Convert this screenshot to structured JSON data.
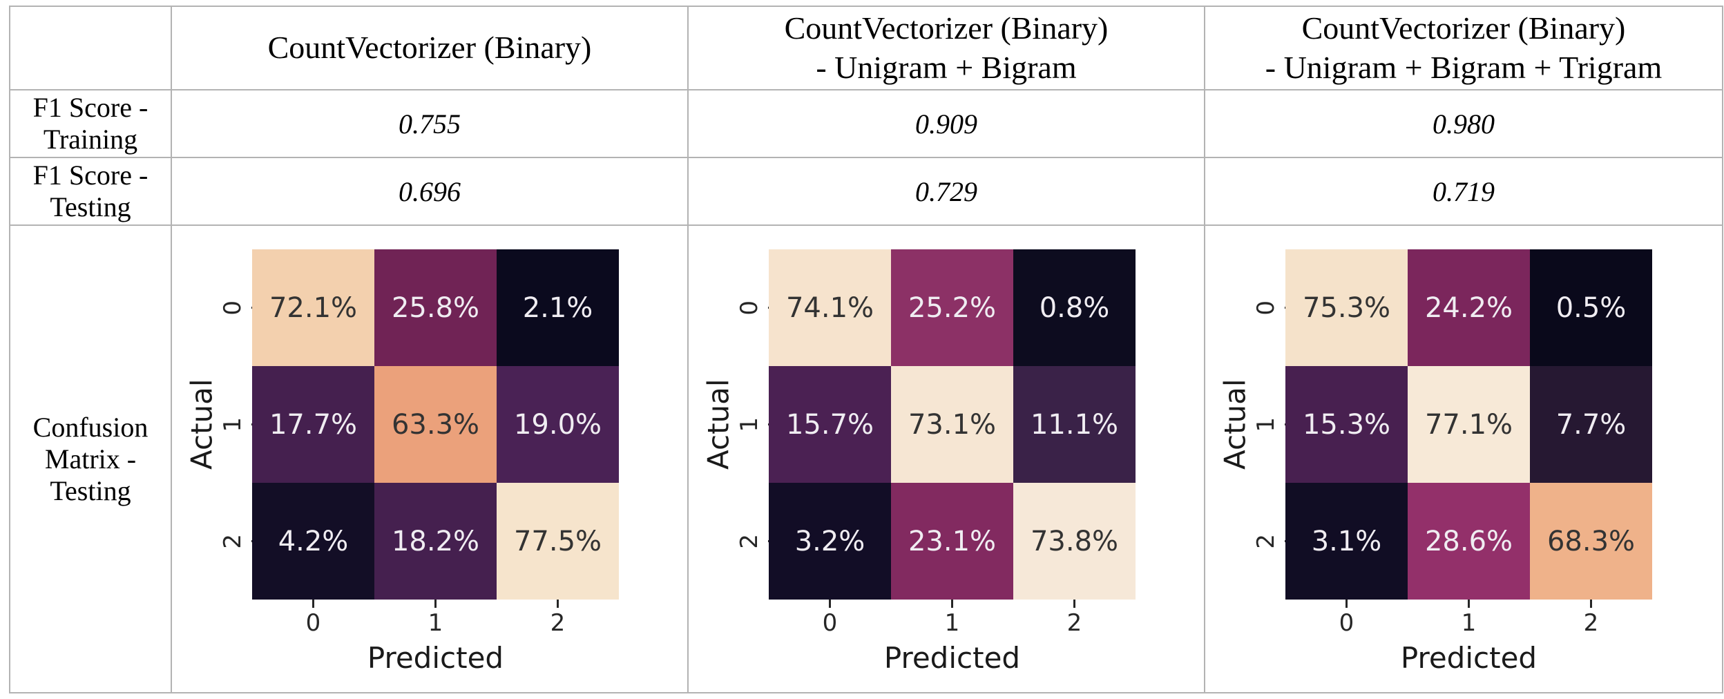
{
  "table": {
    "border_color": "#b3b3b3",
    "row_headers": {
      "f1_training": "F1 Score - Training",
      "f1_testing": "F1 Score - Testing",
      "confusion": "Confusion Matrix - Testing"
    },
    "columns": [
      {
        "title_line1": "CountVectorizer (Binary)",
        "title_line2": "",
        "f1_training": "0.755",
        "f1_testing": "0.696"
      },
      {
        "title_line1": "CountVectorizer (Binary)",
        "title_line2": "-  Unigram + Bigram",
        "f1_training": "0.909",
        "f1_testing": "0.729"
      },
      {
        "title_line1": "CountVectorizer (Binary)",
        "title_line2": "-  Unigram + Bigram + Trigram",
        "f1_training": "0.980",
        "f1_testing": "0.719"
      }
    ]
  },
  "chart_data": [
    {
      "type": "heatmap",
      "title": "Confusion Matrix - Testing: CountVectorizer (Binary)",
      "xlabel": "Predicted",
      "ylabel": "Actual",
      "x_ticks": [
        "0",
        "1",
        "2"
      ],
      "y_ticks": [
        "0",
        "1",
        "2"
      ],
      "values": [
        [
          72.1,
          25.8,
          2.1
        ],
        [
          17.7,
          63.3,
          19.0
        ],
        [
          4.2,
          18.2,
          77.5
        ]
      ],
      "colormap": "rocket-like, normalized per matrix",
      "cells": [
        [
          {
            "label": "72.1%",
            "bg": "#f3d0ae",
            "fg": "#333333"
          },
          {
            "label": "25.8%",
            "bg": "#702355",
            "fg": "#f0edf2"
          },
          {
            "label": "2.1%",
            "bg": "#0b0a1e",
            "fg": "#f0edf2"
          }
        ],
        [
          {
            "label": "17.7%",
            "bg": "#45204f",
            "fg": "#f0edf2"
          },
          {
            "label": "63.3%",
            "bg": "#eba17b",
            "fg": "#333333"
          },
          {
            "label": "19.0%",
            "bg": "#4a2255",
            "fg": "#f0edf2"
          }
        ],
        [
          {
            "label": "4.2%",
            "bg": "#130e26",
            "fg": "#f0edf2"
          },
          {
            "label": "18.2%",
            "bg": "#45204f",
            "fg": "#f0edf2"
          },
          {
            "label": "77.5%",
            "bg": "#f6e4cc",
            "fg": "#333333"
          }
        ]
      ]
    },
    {
      "type": "heatmap",
      "title": "Confusion Matrix - Testing: CountVectorizer (Binary) - Unigram + Bigram",
      "xlabel": "Predicted",
      "ylabel": "Actual",
      "x_ticks": [
        "0",
        "1",
        "2"
      ],
      "y_ticks": [
        "0",
        "1",
        "2"
      ],
      "values": [
        [
          74.1,
          25.2,
          0.8
        ],
        [
          15.7,
          73.1,
          11.1
        ],
        [
          3.2,
          23.1,
          73.8
        ]
      ],
      "colormap": "rocket-like, normalized per matrix",
      "cells": [
        [
          {
            "label": "74.1%",
            "bg": "#f6e3cd",
            "fg": "#333333"
          },
          {
            "label": "25.2%",
            "bg": "#8c3166",
            "fg": "#f0edf2"
          },
          {
            "label": "0.8%",
            "bg": "#0d0c1f",
            "fg": "#f0edf2"
          }
        ],
        [
          {
            "label": "15.7%",
            "bg": "#4b2153",
            "fg": "#f0edf2"
          },
          {
            "label": "73.1%",
            "bg": "#f6e6d3",
            "fg": "#333333"
          },
          {
            "label": "11.1%",
            "bg": "#3a2248",
            "fg": "#f0edf2"
          }
        ],
        [
          {
            "label": "3.2%",
            "bg": "#120d26",
            "fg": "#f0edf2"
          },
          {
            "label": "23.1%",
            "bg": "#822a60",
            "fg": "#f0edf2"
          },
          {
            "label": "73.8%",
            "bg": "#f6e8d8",
            "fg": "#333333"
          }
        ]
      ]
    },
    {
      "type": "heatmap",
      "title": "Confusion Matrix - Testing: CountVectorizer (Binary) - Unigram + Bigram + Trigram",
      "xlabel": "Predicted",
      "ylabel": "Actual",
      "x_ticks": [
        "0",
        "1",
        "2"
      ],
      "y_ticks": [
        "0",
        "1",
        "2"
      ],
      "values": [
        [
          75.3,
          24.2,
          0.5
        ],
        [
          15.3,
          77.1,
          7.7
        ],
        [
          3.1,
          28.6,
          68.3
        ]
      ],
      "colormap": "rocket-like, normalized per matrix",
      "cells": [
        [
          {
            "label": "75.3%",
            "bg": "#f5e2ca",
            "fg": "#333333"
          },
          {
            "label": "24.2%",
            "bg": "#7b265c",
            "fg": "#f0edf2"
          },
          {
            "label": "0.5%",
            "bg": "#0a091b",
            "fg": "#f0edf2"
          }
        ],
        [
          {
            "label": "15.3%",
            "bg": "#482050",
            "fg": "#f0edf2"
          },
          {
            "label": "77.1%",
            "bg": "#f7e9d7",
            "fg": "#333333"
          },
          {
            "label": "7.7%",
            "bg": "#261832",
            "fg": "#f0edf2"
          }
        ],
        [
          {
            "label": "3.1%",
            "bg": "#110d24",
            "fg": "#f0edf2"
          },
          {
            "label": "28.6%",
            "bg": "#93306a",
            "fg": "#f0edf2"
          },
          {
            "label": "68.3%",
            "bg": "#efb28a",
            "fg": "#333333"
          }
        ]
      ]
    }
  ]
}
